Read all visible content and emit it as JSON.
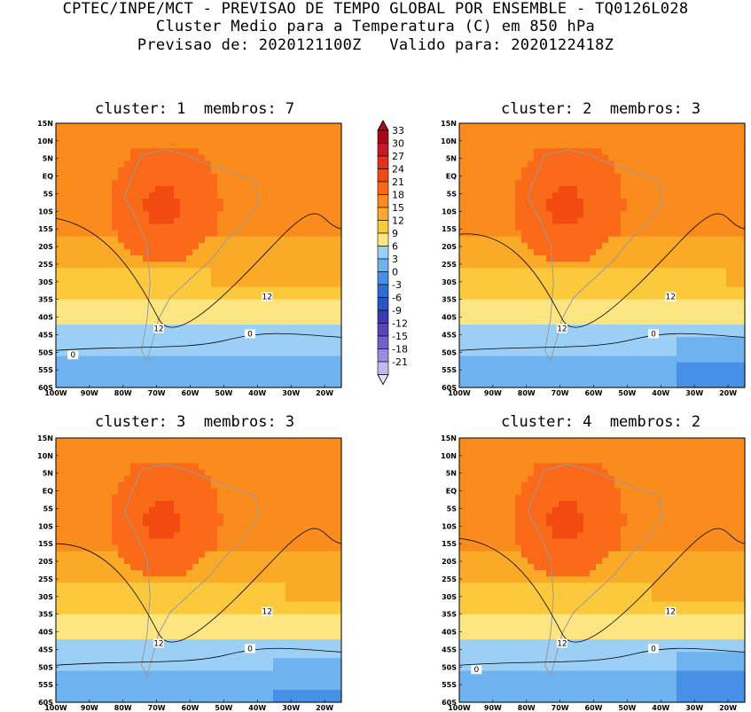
{
  "header": {
    "line1": "CPTEC/INPE/MCT - PREVISAO DE TEMPO GLOBAL POR ENSEMBLE - TQ0126L028",
    "line2": "Cluster Medio para a Temperatura (C) em 850 hPa",
    "line3": "Previsao de: 2020121100Z   Valido para: 2020122418Z"
  },
  "panels": [
    {
      "title": "cluster: 1  membros: 7"
    },
    {
      "title": "cluster: 2  membros: 3"
    },
    {
      "title": "cluster: 3  membros: 3"
    },
    {
      "title": "cluster: 4  membros: 2"
    }
  ],
  "lat_ticks": [
    "15N",
    "10N",
    "5N",
    "EQ",
    "5S",
    "10S",
    "15S",
    "20S",
    "25S",
    "30S",
    "35S",
    "40S",
    "45S",
    "50S",
    "55S",
    "60S"
  ],
  "lon_ticks": [
    "100W",
    "90W",
    "80W",
    "70W",
    "60W",
    "50W",
    "40W",
    "30W",
    "20W"
  ],
  "colorbar": {
    "labels": [
      "33",
      "30",
      "27",
      "24",
      "21",
      "18",
      "15",
      "12",
      "9",
      "6",
      "3",
      "0",
      "-3",
      "-6",
      "-9",
      "-12",
      "-15",
      "-18",
      "-21"
    ],
    "colors": [
      "#a50a18",
      "#c8172a",
      "#e0301e",
      "#f34a12",
      "#fa6a18",
      "#fa8c1e",
      "#fbaa28",
      "#fcc83c",
      "#fde682",
      "#9ccff6",
      "#6eb2f0",
      "#4690e6",
      "#2e6ed2",
      "#2a54be",
      "#3a3cb4",
      "#5646be",
      "#7462cc",
      "#9a8cdc",
      "#c4b9ec"
    ]
  },
  "contour_labels": {
    "p1": [
      "12",
      "12",
      "0",
      "0"
    ],
    "p2": [
      "12",
      "12",
      "0"
    ],
    "p3": [
      "12",
      "12",
      "0"
    ],
    "p4": [
      "12",
      "12",
      "0",
      "0"
    ]
  }
}
